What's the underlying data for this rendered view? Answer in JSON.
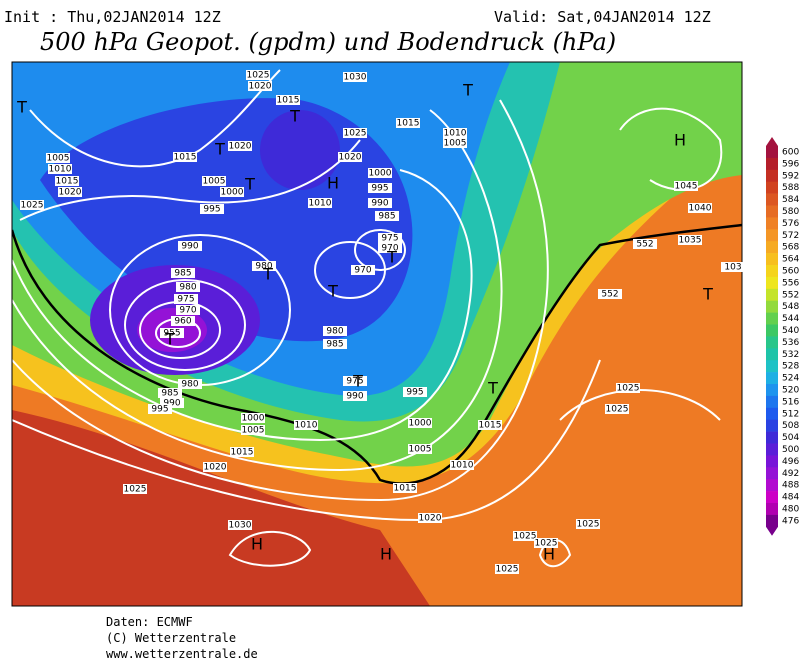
{
  "header": {
    "init": "Init : Thu,02JAN2014 12Z",
    "valid": "Valid: Sat,04JAN2014 12Z",
    "title": "500 hPa Geopot. (gpdm) und Bodendruck (hPa)"
  },
  "legend": {
    "levels": [
      "600",
      "596",
      "592",
      "588",
      "584",
      "580",
      "576",
      "572",
      "568",
      "564",
      "560",
      "556",
      "552",
      "548",
      "544",
      "540",
      "536",
      "532",
      "528",
      "524",
      "520",
      "516",
      "512",
      "508",
      "504",
      "500",
      "496",
      "492",
      "488",
      "484",
      "480",
      "476"
    ],
    "colors": [
      "#a3123e",
      "#b41e2a",
      "#c42f22",
      "#d1421f",
      "#dc5722",
      "#e66c24",
      "#ef8126",
      "#f49626",
      "#f6aa22",
      "#f7bf1e",
      "#f5d41c",
      "#eee61e",
      "#c4e42a",
      "#92da3c",
      "#62d04e",
      "#3cc864",
      "#28c68a",
      "#1ec4a8",
      "#1ec2c6",
      "#1eb0e4",
      "#1e94ee",
      "#1e76ee",
      "#1e5aee",
      "#2a42e2",
      "#3e2ad8",
      "#5a1ed8",
      "#7814d8",
      "#9412d6",
      "#b20ad0",
      "#cc00c6",
      "#b000b0",
      "#78008c"
    ]
  },
  "map": {
    "isobar_labels": [
      "1025",
      "1020",
      "1030",
      "1015",
      "1015",
      "1010",
      "1005",
      "1025",
      "1020",
      "1020",
      "1015",
      "1005",
      "1010",
      "1015",
      "1020",
      "1025",
      "1010",
      "1005",
      "1000",
      "1000",
      "995",
      "990",
      "985",
      "975",
      "970",
      "970",
      "995",
      "990",
      "980",
      "985",
      "980",
      "975",
      "970",
      "960",
      "955",
      "980",
      "985",
      "975",
      "990",
      "995",
      "980",
      "985",
      "990",
      "995",
      "1000",
      "1005",
      "1010",
      "1000",
      "1005",
      "1015",
      "1010",
      "1015",
      "1020",
      "1025",
      "1015",
      "1020",
      "1030",
      "1025",
      "1025",
      "1025",
      "1025",
      "1025",
      "1025",
      "1045",
      "1040",
      "1035",
      "103",
      "552",
      "552"
    ],
    "centers": [
      "T",
      "T",
      "T",
      "T",
      "H",
      "H",
      "T",
      "T",
      "T",
      "T",
      "T",
      "T",
      "T",
      "T",
      "H",
      "H",
      "H"
    ]
  },
  "footer": {
    "source": "Daten: ECMWF",
    "copyright": "(C) Wetterzentrale",
    "url": "www.wetterzentrale.de"
  }
}
